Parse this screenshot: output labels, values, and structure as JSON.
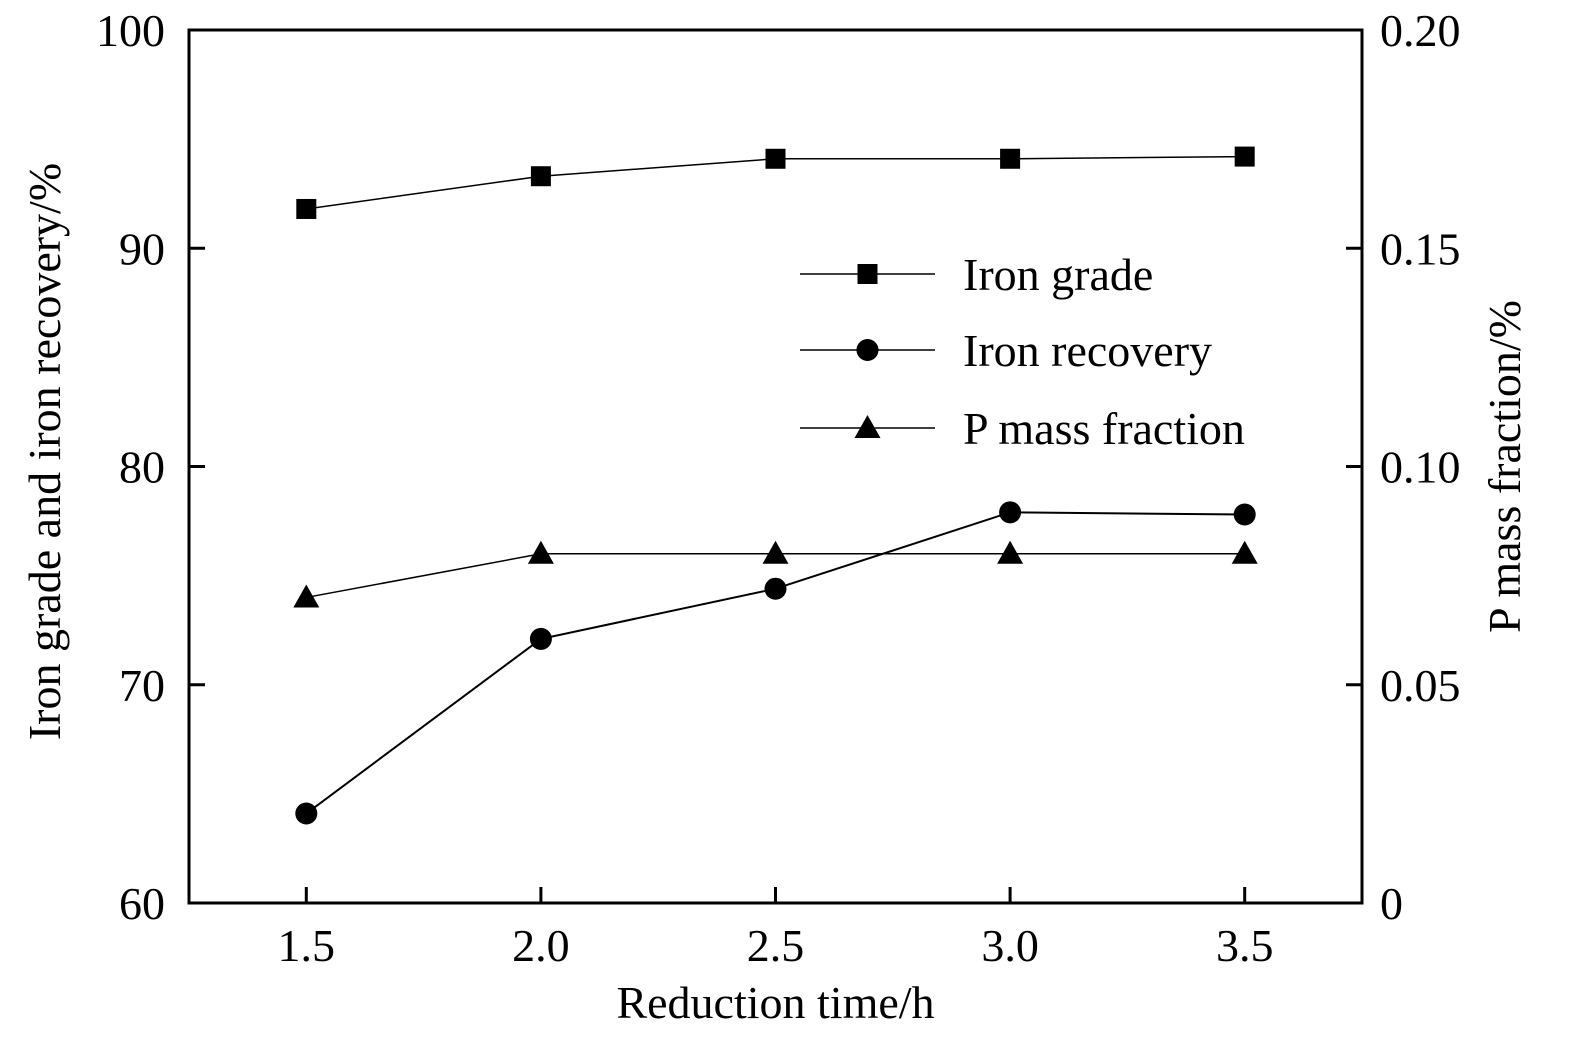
{
  "chart_data": {
    "type": "line",
    "title": "",
    "xlabel": "Reduction time/h",
    "ylabel": "Iron grade and iron recovery/%",
    "y2label": "P mass fraction/%",
    "xlim": [
      1.25,
      3.75
    ],
    "ylim": [
      60,
      100
    ],
    "y2lim": [
      0,
      0.2
    ],
    "x_ticks": [
      "1.5",
      "2.0",
      "2.5",
      "3.0",
      "3.5"
    ],
    "x_tick_values": [
      1.5,
      2.0,
      2.5,
      3.0,
      3.5
    ],
    "y_ticks": [
      "60",
      "70",
      "80",
      "90",
      "100"
    ],
    "y_tick_values": [
      60,
      70,
      80,
      90,
      100
    ],
    "y2_ticks": [
      "0",
      "0.05",
      "0.10",
      "0.15",
      "0.20"
    ],
    "y2_tick_values": [
      0,
      0.05,
      0.1,
      0.15,
      0.2
    ],
    "grid": false,
    "legend_position": "center-right",
    "series": [
      {
        "name": "Iron grade",
        "axis": "left",
        "marker": "square",
        "x": [
          1.5,
          2.0,
          2.5,
          3.0,
          3.5
        ],
        "values": [
          91.8,
          93.3,
          94.1,
          94.1,
          94.2
        ]
      },
      {
        "name": "Iron recovery",
        "axis": "left",
        "marker": "circle",
        "x": [
          1.5,
          2.0,
          2.5,
          3.0,
          3.5
        ],
        "values": [
          64.1,
          72.1,
          74.4,
          77.9,
          77.8
        ]
      },
      {
        "name": "P mass fraction",
        "axis": "right",
        "marker": "triangle",
        "x": [
          1.5,
          2.0,
          2.5,
          3.0,
          3.5
        ],
        "values": [
          0.07,
          0.08,
          0.08,
          0.08,
          0.08
        ]
      }
    ]
  }
}
